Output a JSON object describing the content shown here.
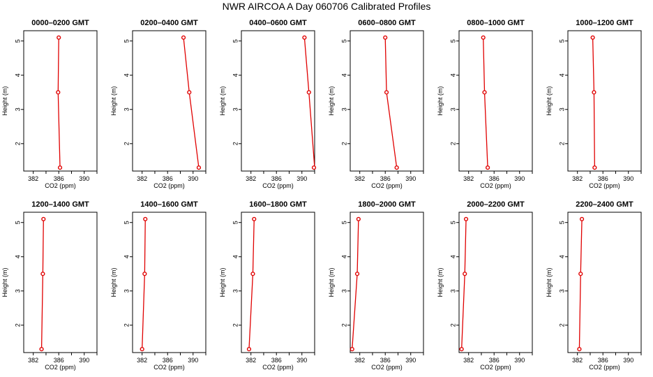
{
  "title": "NWR AIRCOA A  Day 060706  Calibrated Profiles",
  "colors": {
    "series": "#e00000",
    "axis": "#000000",
    "background": "#ffffff"
  },
  "chart_data": [
    {
      "type": "line",
      "title": "0000–0200 GMT",
      "xlabel": "CO2 (ppm)",
      "ylabel": "Height (m)",
      "xlim": [
        380.5,
        392
      ],
      "ylim": [
        1.2,
        5.3
      ],
      "xticks": [
        382,
        386,
        390
      ],
      "yticks": [
        2,
        3,
        4,
        5
      ],
      "y": [
        5.1,
        3.5,
        1.3
      ],
      "x": [
        386.0,
        385.9,
        386.2
      ]
    },
    {
      "type": "line",
      "title": "0200–0400 GMT",
      "xlabel": "CO2 (ppm)",
      "ylabel": "Height (m)",
      "xlim": [
        380.5,
        392
      ],
      "ylim": [
        1.2,
        5.3
      ],
      "xticks": [
        382,
        386,
        390
      ],
      "yticks": [
        2,
        3,
        4,
        5
      ],
      "y": [
        5.1,
        3.5,
        1.3
      ],
      "x": [
        388.5,
        389.4,
        390.9
      ]
    },
    {
      "type": "line",
      "title": "0400–0600 GMT",
      "xlabel": "CO2 (ppm)",
      "ylabel": "Height (m)",
      "xlim": [
        380.5,
        392
      ],
      "ylim": [
        1.2,
        5.3
      ],
      "xticks": [
        382,
        386,
        390
      ],
      "yticks": [
        2,
        3,
        4,
        5
      ],
      "y": [
        5.1,
        3.5,
        1.3
      ],
      "x": [
        390.4,
        391.1,
        392.2
      ]
    },
    {
      "type": "line",
      "title": "0600–0800 GMT",
      "xlabel": "CO2 (ppm)",
      "ylabel": "Height (m)",
      "xlim": [
        380.5,
        392
      ],
      "ylim": [
        1.2,
        5.3
      ],
      "xticks": [
        382,
        386,
        390
      ],
      "yticks": [
        2,
        3,
        4,
        5
      ],
      "y": [
        5.1,
        3.5,
        1.3
      ],
      "x": [
        386.0,
        386.2,
        387.8
      ]
    },
    {
      "type": "line",
      "title": "0800–1000 GMT",
      "xlabel": "CO2 (ppm)",
      "ylabel": "Height (m)",
      "xlim": [
        380.5,
        392
      ],
      "ylim": [
        1.2,
        5.3
      ],
      "xticks": [
        382,
        386,
        390
      ],
      "yticks": [
        2,
        3,
        4,
        5
      ],
      "y": [
        5.1,
        3.5,
        1.3
      ],
      "x": [
        384.3,
        384.5,
        385.0
      ]
    },
    {
      "type": "line",
      "title": "1000–1200 GMT",
      "xlabel": "CO2 (ppm)",
      "ylabel": "Height (m)",
      "xlim": [
        380.5,
        392
      ],
      "ylim": [
        1.2,
        5.3
      ],
      "xticks": [
        382,
        386,
        390
      ],
      "yticks": [
        2,
        3,
        4,
        5
      ],
      "y": [
        5.1,
        3.5,
        1.3
      ],
      "x": [
        384.4,
        384.6,
        384.7
      ]
    },
    {
      "type": "line",
      "title": "1200–1400 GMT",
      "xlabel": "CO2 (ppm)",
      "ylabel": "Height (m)",
      "xlim": [
        380.5,
        392
      ],
      "ylim": [
        1.2,
        5.3
      ],
      "xticks": [
        382,
        386,
        390
      ],
      "yticks": [
        2,
        3,
        4,
        5
      ],
      "y": [
        5.1,
        3.5,
        1.3
      ],
      "x": [
        383.6,
        383.5,
        383.3
      ]
    },
    {
      "type": "line",
      "title": "1400–1600 GMT",
      "xlabel": "CO2 (ppm)",
      "ylabel": "Height (m)",
      "xlim": [
        380.5,
        392
      ],
      "ylim": [
        1.2,
        5.3
      ],
      "xticks": [
        382,
        386,
        390
      ],
      "yticks": [
        2,
        3,
        4,
        5
      ],
      "y": [
        5.1,
        3.5,
        1.3
      ],
      "x": [
        382.5,
        382.4,
        382.0
      ]
    },
    {
      "type": "line",
      "title": "1600–1800 GMT",
      "xlabel": "CO2 (ppm)",
      "ylabel": "Height (m)",
      "xlim": [
        380.5,
        392
      ],
      "ylim": [
        1.2,
        5.3
      ],
      "xticks": [
        382,
        386,
        390
      ],
      "yticks": [
        2,
        3,
        4,
        5
      ],
      "y": [
        5.1,
        3.5,
        1.3
      ],
      "x": [
        382.5,
        382.3,
        381.7
      ]
    },
    {
      "type": "line",
      "title": "1800–2000 GMT",
      "xlabel": "CO2 (ppm)",
      "ylabel": "Height (m)",
      "xlim": [
        380.5,
        392
      ],
      "ylim": [
        1.2,
        5.3
      ],
      "xticks": [
        382,
        386,
        390
      ],
      "yticks": [
        2,
        3,
        4,
        5
      ],
      "y": [
        5.1,
        3.5,
        1.3
      ],
      "x": [
        381.8,
        381.6,
        380.8
      ]
    },
    {
      "type": "line",
      "title": "2000–2200 GMT",
      "xlabel": "CO2 (ppm)",
      "ylabel": "Height (m)",
      "xlim": [
        380.5,
        392
      ],
      "ylim": [
        1.2,
        5.3
      ],
      "xticks": [
        382,
        386,
        390
      ],
      "yticks": [
        2,
        3,
        4,
        5
      ],
      "y": [
        5.1,
        3.5,
        1.3
      ],
      "x": [
        381.6,
        381.4,
        380.9
      ]
    },
    {
      "type": "line",
      "title": "2200–2400 GMT",
      "xlabel": "CO2 (ppm)",
      "ylabel": "Height (m)",
      "xlim": [
        380.5,
        392
      ],
      "ylim": [
        1.2,
        5.3
      ],
      "xticks": [
        382,
        386,
        390
      ],
      "yticks": [
        2,
        3,
        4,
        5
      ],
      "y": [
        5.1,
        3.5,
        1.3
      ],
      "x": [
        382.7,
        382.5,
        382.3
      ]
    }
  ]
}
